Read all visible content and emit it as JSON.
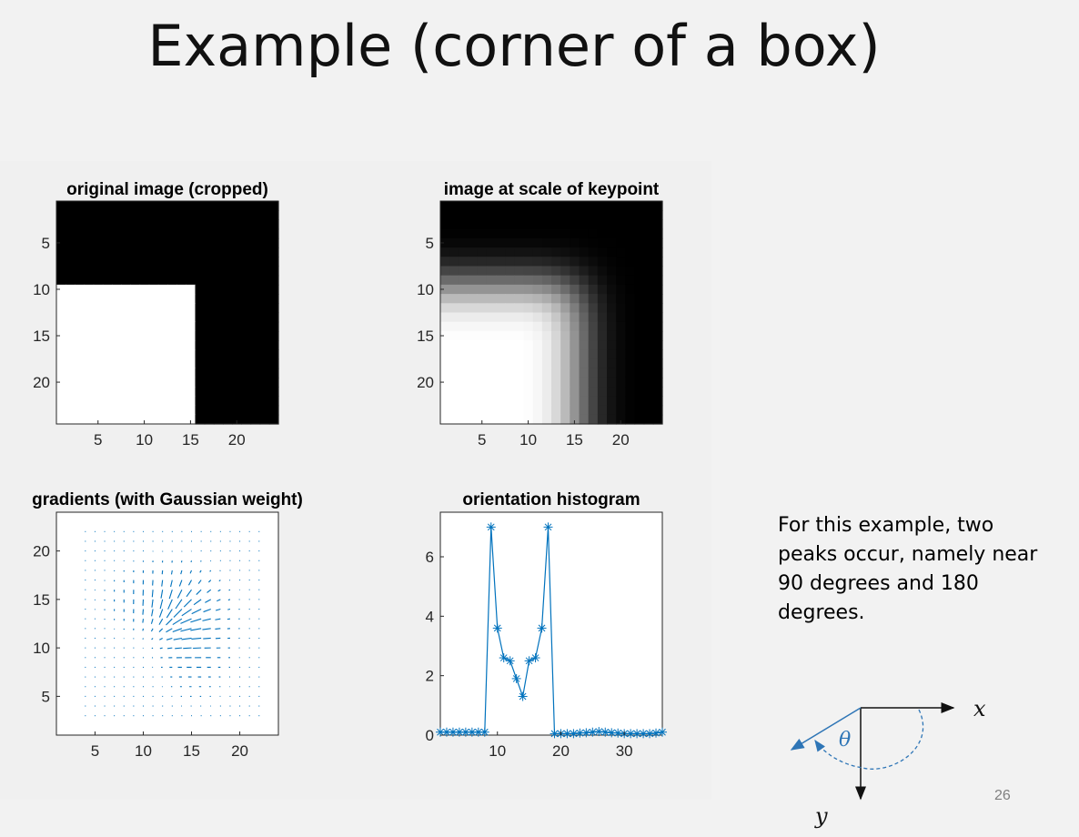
{
  "slide": {
    "title": "Example  (corner of a box)",
    "page_number": "26",
    "caption": "For this example, two peaks occur, namely near 90 degrees and 180 degrees."
  },
  "diagram": {
    "x_label": "x",
    "y_label": "y",
    "angle_label": "θ",
    "arrow_color": "#2e75b6"
  },
  "chart_data": [
    {
      "type": "heatmap",
      "title": "original image (cropped)",
      "colormap": "gray",
      "grid_size": [
        24,
        24
      ],
      "description_values": "white (1) where row >= 10 and col <= 15; black (0) elsewhere",
      "white_region": {
        "row_from": 10,
        "row_to": 24,
        "col_from": 1,
        "col_to": 15
      },
      "xticks": [
        "5",
        "10",
        "15",
        "20"
      ],
      "yticks": [
        "5",
        "10",
        "15",
        "20"
      ]
    },
    {
      "type": "heatmap",
      "title": "image at scale of keypoint",
      "colormap": "gray",
      "grid_size": [
        24,
        24
      ],
      "blur_sigma": 2.5,
      "xticks": [
        "5",
        "10",
        "15",
        "20"
      ],
      "yticks": [
        "5",
        "10",
        "15",
        "20"
      ]
    },
    {
      "type": "quiver",
      "title": "gradients (with Gaussian weight)",
      "xlim": [
        1,
        24
      ],
      "ylim": [
        1,
        24
      ],
      "arrow_color": "#0072bd",
      "xticks": [
        "5",
        "10",
        "15",
        "20"
      ],
      "yticks": [
        "5",
        "10",
        "15",
        "20"
      ]
    },
    {
      "type": "line",
      "title": "orientation histogram",
      "marker": "*",
      "color": "#0072bd",
      "x": [
        1,
        2,
        3,
        4,
        5,
        6,
        7,
        8,
        9,
        10,
        11,
        12,
        13,
        14,
        15,
        16,
        17,
        18,
        19,
        20,
        21,
        22,
        23,
        24,
        25,
        26,
        27,
        28,
        29,
        30,
        31,
        32,
        33,
        34,
        35,
        36
      ],
      "values": [
        0.1,
        0.1,
        0.1,
        0.1,
        0.1,
        0.1,
        0.1,
        0.1,
        7.0,
        3.6,
        2.6,
        2.5,
        1.9,
        1.3,
        2.5,
        2.6,
        3.6,
        7.0,
        0.05,
        0.05,
        0.05,
        0.05,
        0.07,
        0.08,
        0.1,
        0.12,
        0.1,
        0.08,
        0.07,
        0.05,
        0.05,
        0.05,
        0.05,
        0.05,
        0.07,
        0.1
      ],
      "xlim": [
        1,
        36
      ],
      "ylim": [
        0,
        7.5
      ],
      "xticks": [
        "10",
        "20",
        "30"
      ],
      "yticks": [
        "0",
        "2",
        "4",
        "6"
      ]
    }
  ]
}
